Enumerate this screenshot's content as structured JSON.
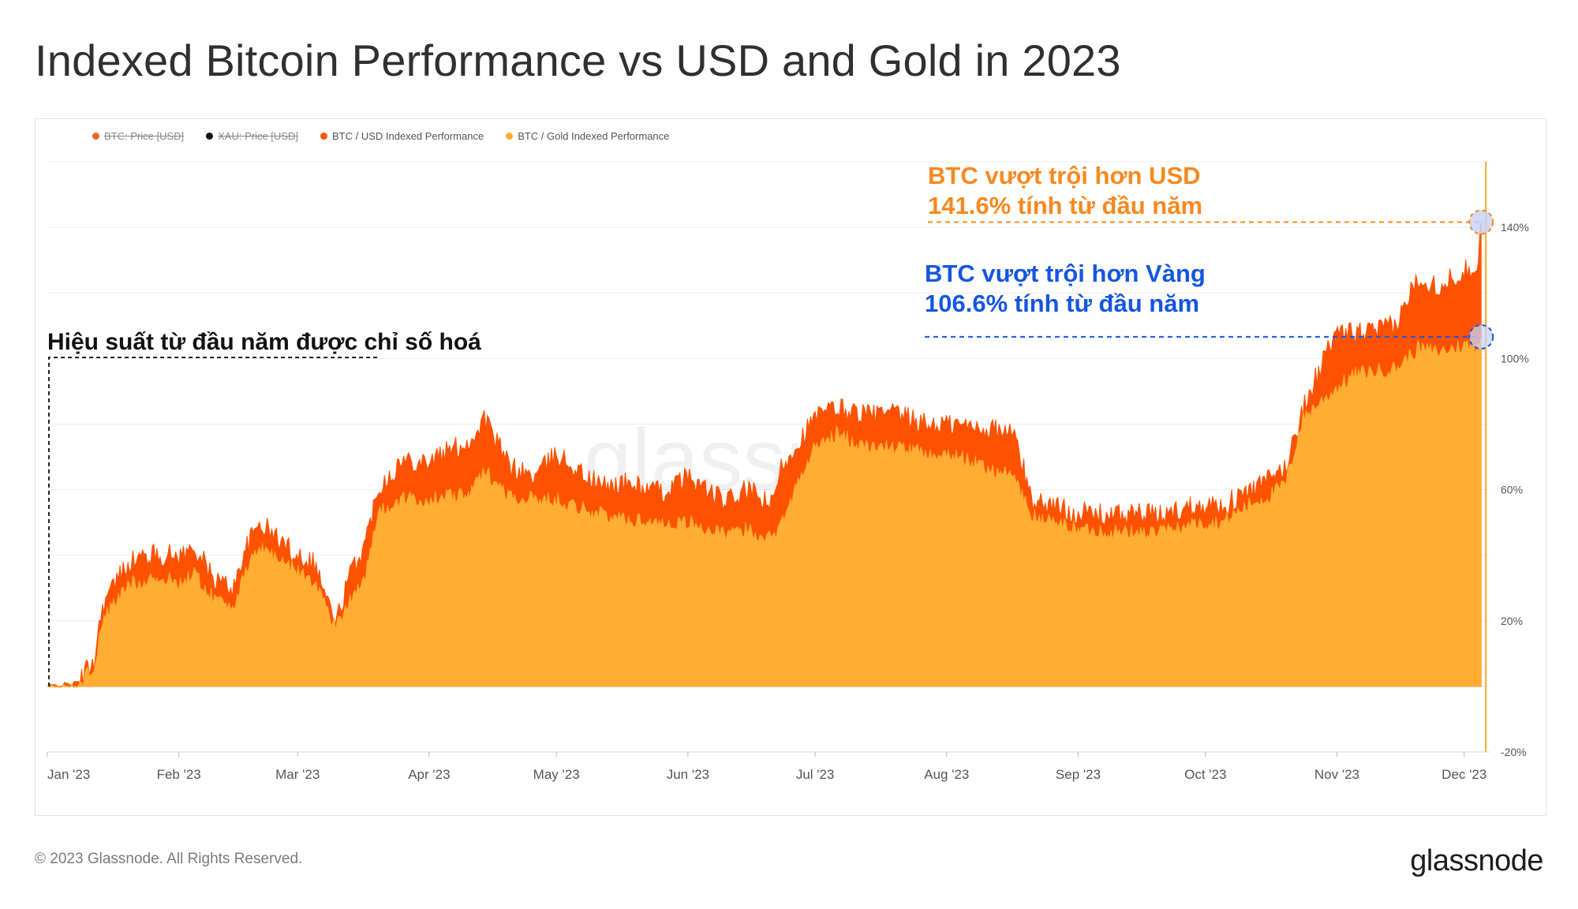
{
  "page": {
    "title": "Indexed Bitcoin Performance vs USD and Gold in 2023",
    "copyright": "© 2023 Glassnode. All Rights Reserved.",
    "logo": "glassnode",
    "watermark": "glassnode"
  },
  "legend": [
    {
      "label": "BTC: Price [USD]",
      "color": "#f26722",
      "enabled": false
    },
    {
      "label": "XAU: Price [USD]",
      "color": "#111111",
      "enabled": false
    },
    {
      "label": "BTC / USD Indexed Performance",
      "color": "#ff5200",
      "enabled": true
    },
    {
      "label": "BTC / Gold Indexed Performance",
      "color": "#ffad33",
      "enabled": true
    }
  ],
  "annotations": {
    "usd_line1": "BTC vượt trội hơn USD",
    "usd_line2": "141.6% tính từ đầu năm",
    "gold_line1": "BTC vượt trội hơn Vàng",
    "gold_line2": "106.6% tính từ đầu năm",
    "indexed": "Hiệu suất từ đầu năm được chỉ số hoá"
  },
  "colors": {
    "usd_area": "#ff5200",
    "gold_area": "#ffad33",
    "usd_annotation": "#f7891f",
    "gold_annotation": "#1556e0",
    "cursor_line": "#f6a623",
    "grid": "#ececec"
  },
  "chart_data": {
    "type": "area",
    "title": "Indexed Bitcoin Performance vs USD and Gold in 2023",
    "xlabel": "",
    "ylabel": "",
    "x_ticks": [
      "Jan '23",
      "Feb '23",
      "Mar '23",
      "Apr '23",
      "May '23",
      "Jun '23",
      "Jul '23",
      "Aug '23",
      "Sep '23",
      "Oct '23",
      "Nov '23",
      "Dec '23"
    ],
    "y_ticks": [
      "140%",
      "100%",
      "60%",
      "20%",
      "-20%"
    ],
    "y_tick_values": [
      140,
      100,
      60,
      20,
      -20
    ],
    "ylim": [
      -20,
      160
    ],
    "xlim": [
      "2023-01-01",
      "2023-12-07"
    ],
    "grid": true,
    "legend_position": "top-left",
    "series": [
      {
        "name": "BTC / USD Indexed Performance",
        "color": "#ff5200",
        "x": [
          "2023-01-01",
          "2023-01-08",
          "2023-01-12",
          "2023-01-14",
          "2023-01-20",
          "2023-01-25",
          "2023-02-01",
          "2023-02-05",
          "2023-02-09",
          "2023-02-14",
          "2023-02-16",
          "2023-02-20",
          "2023-02-28",
          "2023-03-05",
          "2023-03-10",
          "2023-03-13",
          "2023-03-17",
          "2023-03-20",
          "2023-03-26",
          "2023-04-01",
          "2023-04-11",
          "2023-04-14",
          "2023-04-20",
          "2023-04-26",
          "2023-05-01",
          "2023-05-08",
          "2023-05-12",
          "2023-05-18",
          "2023-05-26",
          "2023-06-01",
          "2023-06-10",
          "2023-06-15",
          "2023-06-21",
          "2023-06-23",
          "2023-07-01",
          "2023-07-06",
          "2023-07-13",
          "2023-07-20",
          "2023-07-27",
          "2023-08-01",
          "2023-08-10",
          "2023-08-17",
          "2023-08-21",
          "2023-09-01",
          "2023-09-11",
          "2023-09-15",
          "2023-09-20",
          "2023-09-30",
          "2023-10-05",
          "2023-10-12",
          "2023-10-16",
          "2023-10-20",
          "2023-10-24",
          "2023-10-31",
          "2023-11-05",
          "2023-11-09",
          "2023-11-15",
          "2023-11-20",
          "2023-11-25",
          "2023-12-01",
          "2023-12-04",
          "2023-12-05"
        ],
        "values": [
          0,
          1,
          8,
          25,
          38,
          40,
          40,
          42,
          33,
          30,
          40,
          50,
          41,
          38,
          19,
          33,
          44,
          61,
          69,
          69,
          75,
          82,
          67,
          64,
          71,
          64,
          61,
          62,
          59,
          64,
          56,
          60,
          55,
          67,
          82,
          85,
          83,
          83,
          80,
          80,
          79,
          77,
          57,
          53,
          52,
          53,
          52,
          56,
          55,
          60,
          63,
          67,
          85,
          106,
          108,
          108,
          110,
          125,
          122,
          127,
          128,
          141.6
        ]
      },
      {
        "name": "BTC / Gold Indexed Performance",
        "color": "#ffad33",
        "x": [
          "2023-01-01",
          "2023-01-08",
          "2023-01-12",
          "2023-01-14",
          "2023-01-20",
          "2023-01-25",
          "2023-02-01",
          "2023-02-05",
          "2023-02-09",
          "2023-02-14",
          "2023-02-16",
          "2023-02-20",
          "2023-02-28",
          "2023-03-05",
          "2023-03-10",
          "2023-03-13",
          "2023-03-17",
          "2023-03-20",
          "2023-03-26",
          "2023-04-01",
          "2023-04-11",
          "2023-04-14",
          "2023-04-20",
          "2023-04-26",
          "2023-05-01",
          "2023-05-08",
          "2023-05-12",
          "2023-05-18",
          "2023-05-26",
          "2023-06-01",
          "2023-06-10",
          "2023-06-15",
          "2023-06-21",
          "2023-06-23",
          "2023-07-01",
          "2023-07-06",
          "2023-07-13",
          "2023-07-20",
          "2023-07-27",
          "2023-08-01",
          "2023-08-10",
          "2023-08-17",
          "2023-08-21",
          "2023-09-01",
          "2023-09-11",
          "2023-09-15",
          "2023-09-20",
          "2023-09-30",
          "2023-10-05",
          "2023-10-12",
          "2023-10-16",
          "2023-10-20",
          "2023-10-24",
          "2023-10-31",
          "2023-11-05",
          "2023-11-09",
          "2023-11-15",
          "2023-11-20",
          "2023-11-25",
          "2023-12-01",
          "2023-12-04",
          "2023-12-05"
        ],
        "values": [
          0,
          0,
          6,
          20,
          31,
          33,
          32,
          34,
          27,
          25,
          32,
          43,
          36,
          32,
          18,
          26,
          34,
          53,
          57,
          57,
          59,
          66,
          58,
          57,
          57,
          54,
          52,
          51,
          50,
          50,
          46,
          48,
          45,
          51,
          73,
          77,
          73,
          73,
          71,
          71,
          67,
          64,
          52,
          48,
          47,
          47,
          47,
          50,
          50,
          56,
          58,
          62,
          82,
          90,
          95,
          96,
          97,
          103,
          102,
          104,
          104,
          106.6
        ]
      }
    ]
  }
}
